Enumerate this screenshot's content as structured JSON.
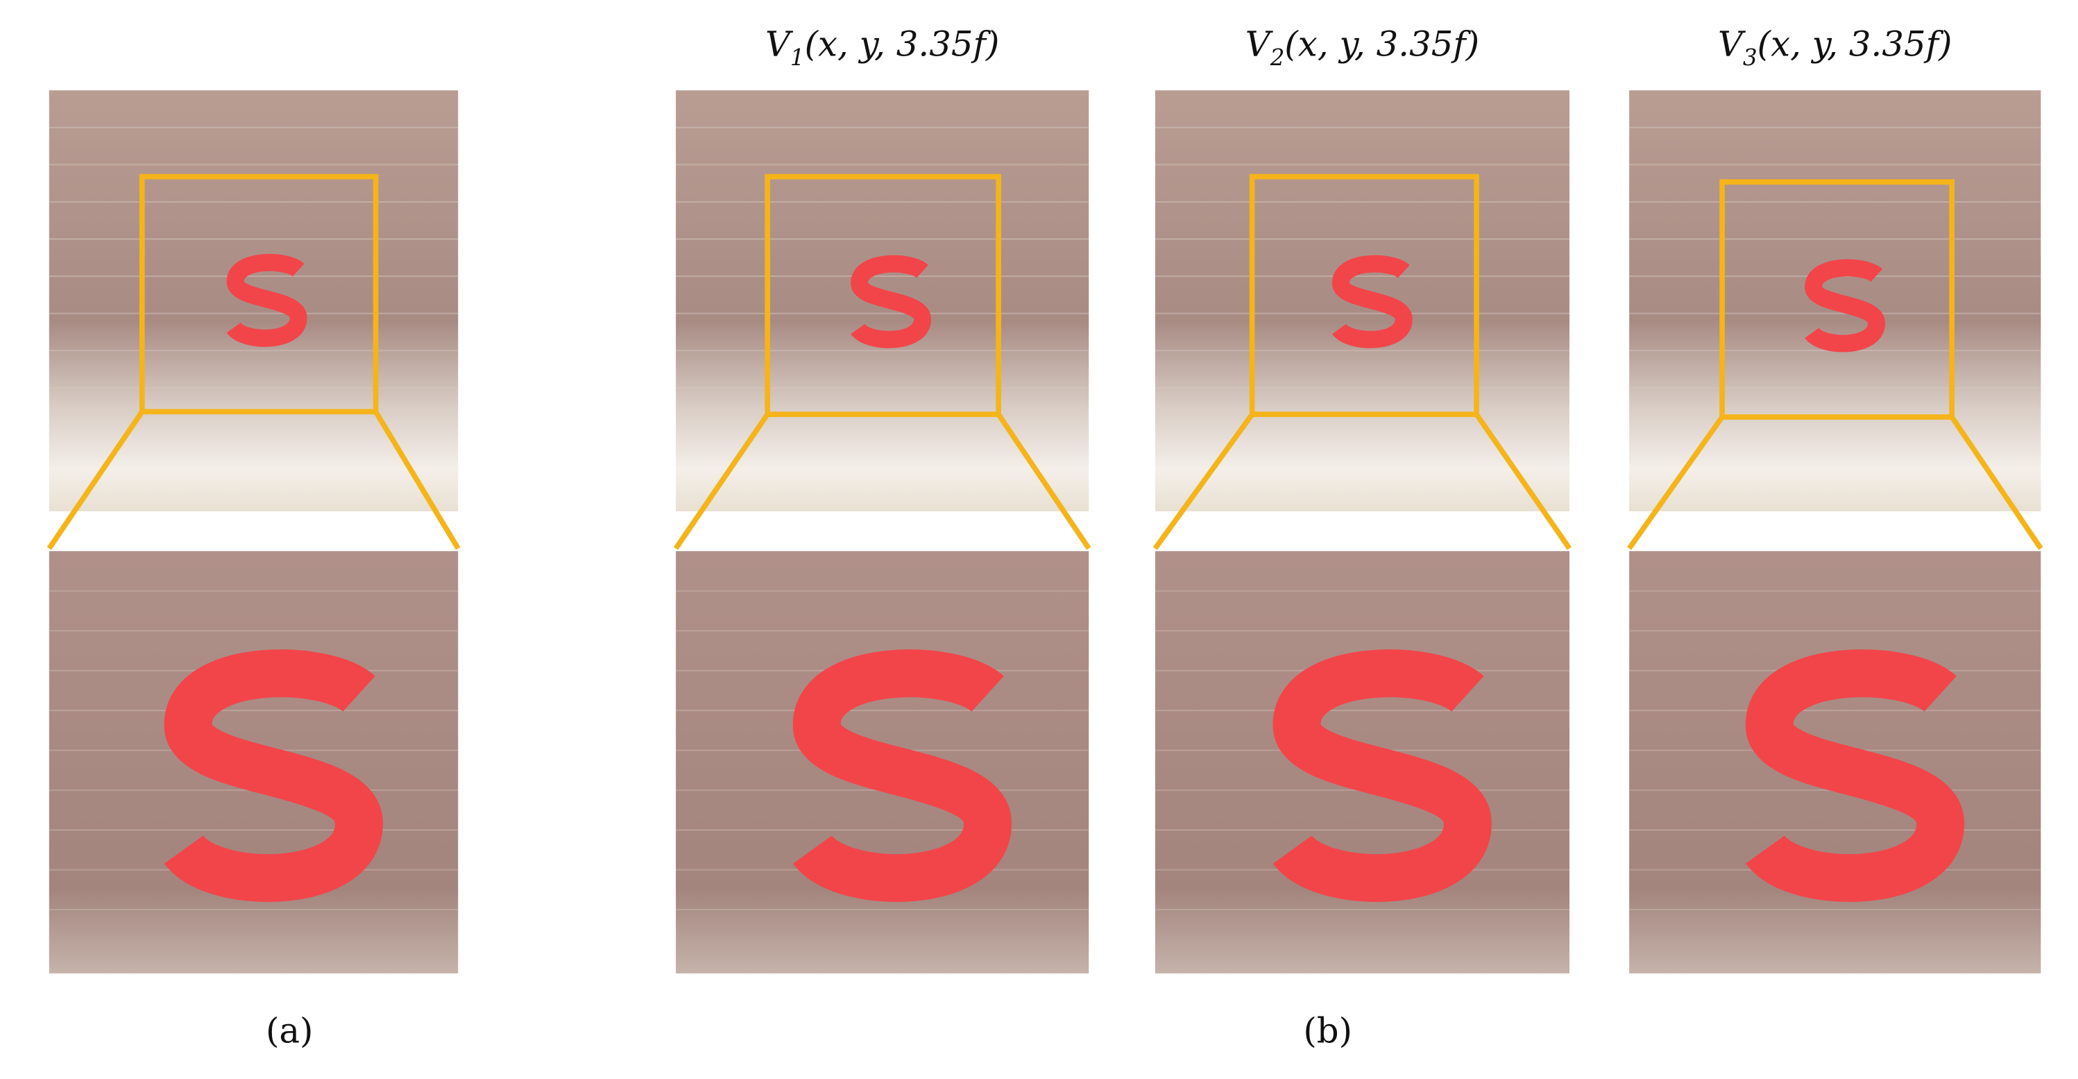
{
  "panel_a": {
    "label": "(a)"
  },
  "panel_b": {
    "label": "(b)",
    "views": [
      {
        "symbol": "V",
        "subscript": "1",
        "arguments": "(x, y, 3.35f)"
      },
      {
        "symbol": "V",
        "subscript": "2",
        "arguments": "(x, y, 3.35f)"
      },
      {
        "symbol": "V",
        "subscript": "3",
        "arguments": "(x, y, 3.35f)"
      }
    ]
  }
}
